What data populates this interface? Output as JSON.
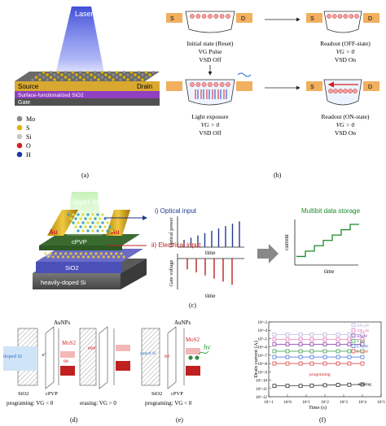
{
  "panel_a": {
    "caption": "(a)",
    "laser": "Laser",
    "source": "Source",
    "drain": "Drain",
    "substrate": "Surface-functionalized SiO2",
    "gate": "Gate",
    "legend": [
      {
        "label": "Mo",
        "color": "#8a8a8a"
      },
      {
        "label": "S",
        "color": "#e0b400"
      },
      {
        "label": "Si",
        "color": "#c8c8c8"
      },
      {
        "label": "O",
        "color": "#d42020"
      },
      {
        "label": "H",
        "color": "#1e3aa8"
      }
    ]
  },
  "panel_b": {
    "caption": "(b)",
    "electrode_s": "S",
    "electrode_d": "D",
    "step1": {
      "title": "Initial state (Reset)",
      "line2": "VG Pulse",
      "line3": "VSD Off"
    },
    "step2": {
      "title": "Readout (OFF-state)",
      "line2": "VG > 0",
      "line3": "VSD On"
    },
    "step3": {
      "title": "Light exposure",
      "line2": "VG > 0",
      "line3": "VSD Off"
    },
    "step4": {
      "title": "Readout (ON-state)",
      "line2": "VG > 0",
      "line3": "VSD On"
    }
  },
  "panel_c": {
    "caption": "(c)",
    "title": "Single-layer MoS2",
    "au_left": "Au",
    "au_right": "Au",
    "cpvp": "cPVP",
    "aunps": "AuNPs",
    "sio2": "SiO2",
    "si": "heavily-doped Si",
    "optical_input": "i) Optical input",
    "electrical_input": "ii) Electrical input",
    "optical_ylabel": "Optical power",
    "gate_ylabel": "Gate voltage",
    "time_label": "time",
    "storage_title": "Multibit data storage",
    "storage_ylabel": "current",
    "storage_xlabel": "time",
    "optical_pulses": [
      0.25,
      0.32,
      0.4,
      0.48,
      0.56,
      0.64,
      0.72,
      0.8,
      0.88
    ],
    "electrical_pulses": [
      0.35,
      0.45,
      0.55,
      0.65,
      0.75,
      0.85
    ],
    "storage_levels": [
      1,
      2,
      3,
      4,
      5,
      6,
      7
    ]
  },
  "panel_d": {
    "caption": "(d)",
    "aunps": "AuNPs",
    "mos2": "MoS2",
    "doped_si": "doped Si",
    "sio2": "SiO2",
    "cpvp": "cPVP",
    "prog": "programing: VG < 0",
    "erase": "erasing: VG > 0"
  },
  "panel_e": {
    "caption": "(e)",
    "aunps": "AuNPs",
    "mos2": "MoS2",
    "doped_si": "doped Si",
    "sio2": "SiO2",
    "cpvp": "cPVP",
    "hv": "hν",
    "prog": "programing: VG < 0"
  },
  "panel_f": {
    "caption": "(f)",
    "ylabel": "Drain current (A)",
    "xlabel": "Time (s)",
    "programing": "programing",
    "erasing": "erasing",
    "legend": [
      {
        "label": "200 μW",
        "color": "#b8a8d8"
      },
      {
        "label": "100 μW",
        "color": "#e06ab0"
      },
      {
        "label": "50 μW",
        "color": "#7a2aa0"
      },
      {
        "label": "4 μW",
        "color": "#2a9a3a"
      },
      {
        "label": "0.8 μW",
        "color": "#3a6ad8"
      },
      {
        "label": "0.1 μW",
        "color": "#d83030"
      }
    ],
    "chart_data": {
      "type": "scatter",
      "xlabel": "Time (s)",
      "ylabel": "Drain current (A)",
      "x_scale": "log",
      "y_scale": "log",
      "xlim": [
        0.1,
        100000
      ],
      "ylim": [
        1e-12,
        0.001
      ],
      "x_ticks": [
        "10^-1",
        "10^0",
        "10^1",
        "10^2",
        "10^3",
        "10^4",
        "10^5"
      ],
      "y_ticks": [
        "10^-3",
        "10^-4",
        "10^-5",
        "10^-6",
        "10^-7",
        "10^-8",
        "10^-9",
        "10^-10",
        "10^-11",
        "10^-12"
      ],
      "x": [
        0.2,
        1,
        5,
        20,
        100,
        500,
        2000,
        10000
      ],
      "series": [
        {
          "name": "200 μW",
          "values": [
            3e-05,
            3e-05,
            3e-05,
            3e-05,
            3e-05,
            3e-05,
            3e-05,
            3e-05
          ]
        },
        {
          "name": "100 μW",
          "values": [
            8e-06,
            8e-06,
            8e-06,
            8e-06,
            8e-06,
            8e-06,
            8e-06,
            8e-06
          ]
        },
        {
          "name": "50 μW",
          "values": [
            2e-06,
            2e-06,
            2e-06,
            2e-06,
            2e-06,
            2e-06,
            2e-06,
            2e-06
          ]
        },
        {
          "name": "4 μW",
          "values": [
            3e-07,
            3e-07,
            3e-07,
            3e-07,
            3e-07,
            3e-07,
            3e-07,
            3e-07
          ]
        },
        {
          "name": "0.8 μW",
          "values": [
            6e-08,
            6e-08,
            6e-08,
            6e-08,
            6e-08,
            6e-08,
            6e-08,
            6e-08
          ]
        },
        {
          "name": "0.1 μW",
          "values": [
            1e-08,
            1e-08,
            1e-08,
            1e-08,
            1e-08,
            1e-08,
            1e-08,
            1e-08
          ]
        },
        {
          "name": "erasing",
          "values": [
            2e-11,
            2e-11,
            2e-11,
            2.2e-11,
            2.4e-11,
            2.6e-11,
            2.8e-11,
            3e-11
          ]
        }
      ]
    }
  }
}
